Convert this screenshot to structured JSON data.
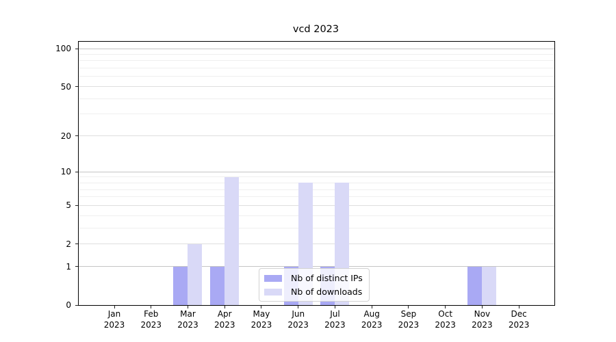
{
  "title": "vcd 2023",
  "chart_data": {
    "type": "bar",
    "title": "vcd 2023",
    "x_months": [
      "Jan",
      "Feb",
      "Mar",
      "Apr",
      "May",
      "Jun",
      "Jul",
      "Aug",
      "Sep",
      "Oct",
      "Nov",
      "Dec"
    ],
    "x_year": "2023",
    "series": [
      {
        "name": "Nb of distinct IPs",
        "color": "#a9a9f4",
        "values": [
          0,
          0,
          1,
          1,
          0,
          1,
          1,
          0,
          0,
          0,
          1,
          0
        ]
      },
      {
        "name": "Nb of downloads",
        "color": "#d9d9f7",
        "values": [
          0,
          0,
          2,
          9,
          0,
          8,
          8,
          0,
          0,
          0,
          1,
          0
        ]
      }
    ],
    "y_scale": "log1p",
    "y_ticks": [
      0,
      1,
      2,
      5,
      10,
      20,
      50,
      100
    ],
    "ylim": [
      0,
      113
    ],
    "grid": true,
    "gridlines": {
      "major": [
        1,
        10,
        100
      ],
      "mid": [
        2,
        5,
        20,
        50
      ],
      "minor": [
        3,
        4,
        6,
        7,
        8,
        9,
        30,
        40,
        60,
        70,
        80,
        90
      ]
    },
    "grid_colors": {
      "major": "#c4c4c4",
      "mid": "#dfdfdf",
      "minor": "#efefef"
    },
    "legend": {
      "position": "lower center",
      "labels": [
        "Nb of distinct IPs",
        "Nb of downloads"
      ]
    }
  }
}
